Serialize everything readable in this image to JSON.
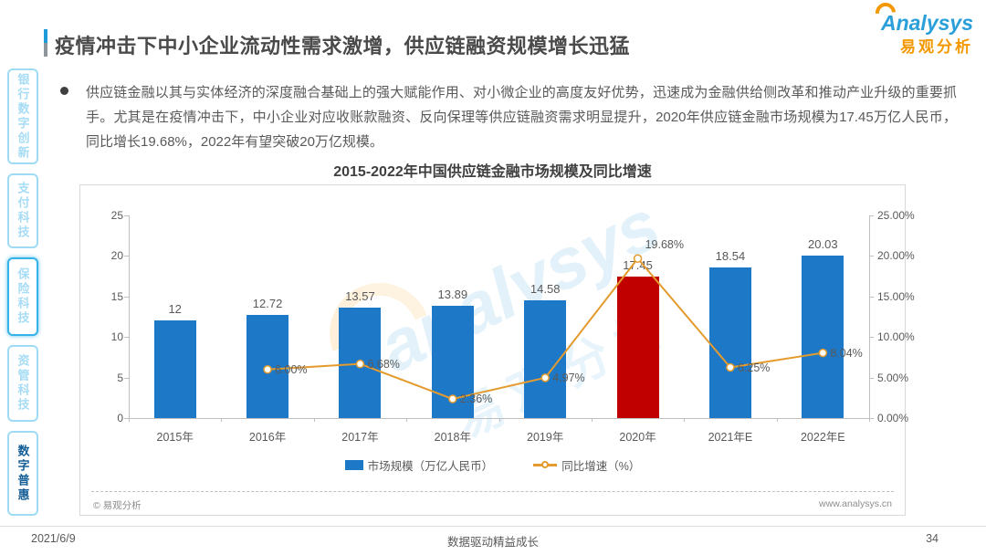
{
  "slide": {
    "title": "疫情冲击下中小企业流动性需求激增，供应链融资规模增长迅猛",
    "logo": {
      "brand": "Analysys",
      "brand_cn": "易观分析"
    },
    "bullet_text": "供应链金融以其与实体经济的深度融合基础上的强大赋能作用、对小微企业的高度友好优势，迅速成为金融供给侧改革和推动产业升级的重要抓手。尤其是在疫情冲击下，中小企业对应收账款融资、反向保理等供应链融资需求明显提升，2020年供应链金融市场规模为17.45万亿人民币，同比增长19.68%，2022年有望突破20万亿规模。",
    "watermark": {
      "en": "analysys",
      "cn": "易观分析"
    },
    "chart_footer": {
      "copyright": "© 易观分析",
      "website": "www.analysys.cn"
    },
    "footer": {
      "date": "2021/6/9",
      "slogan": "数据驱动精益成长",
      "page": "34"
    }
  },
  "sidebar": {
    "items": [
      {
        "label": "银行数字创新",
        "active": false,
        "dark": false
      },
      {
        "label": "支付科技",
        "active": false,
        "dark": false
      },
      {
        "label": "保险科技",
        "active": true,
        "dark": false
      },
      {
        "label": "资管科技",
        "active": false,
        "dark": false
      },
      {
        "label": "数字普惠",
        "active": false,
        "dark": true
      }
    ]
  },
  "chart_data": {
    "type": "bar",
    "title": "2015-2022年中国供应链金融市场规模及同比增速",
    "categories": [
      "2015年",
      "2016年",
      "2017年",
      "2018年",
      "2019年",
      "2020年",
      "2021年E",
      "2022年E"
    ],
    "series": [
      {
        "name": "市场规模（万亿人民币）",
        "type": "bar",
        "values": [
          12,
          12.72,
          13.57,
          13.89,
          14.58,
          17.45,
          18.54,
          20.03
        ],
        "labels": [
          "12",
          "12.72",
          "13.57",
          "13.89",
          "14.58",
          "17.45",
          "18.54",
          "20.03"
        ]
      },
      {
        "name": "同比增速（%）",
        "type": "line",
        "values": [
          null,
          6.0,
          6.68,
          2.36,
          4.97,
          19.68,
          6.25,
          8.04
        ],
        "labels": [
          "",
          "6.00%",
          "6.68%",
          "2.36%",
          "4.97%",
          "19.68%",
          "6.25%",
          "8.04%"
        ]
      }
    ],
    "left_axis": {
      "min": 0,
      "max": 25,
      "ticks": [
        "0",
        "5",
        "10",
        "15",
        "20",
        "25"
      ]
    },
    "right_axis": {
      "min": 0,
      "max": 25,
      "ticks": [
        "0.00%",
        "5.00%",
        "10.00%",
        "15.00%",
        "20.00%",
        "25.00%"
      ]
    },
    "highlight_index": 5,
    "grid": false,
    "legend_position": "bottom",
    "colors": {
      "bar": "#1E78C8",
      "highlight": "#C00000",
      "line": "#E49B2D"
    }
  }
}
